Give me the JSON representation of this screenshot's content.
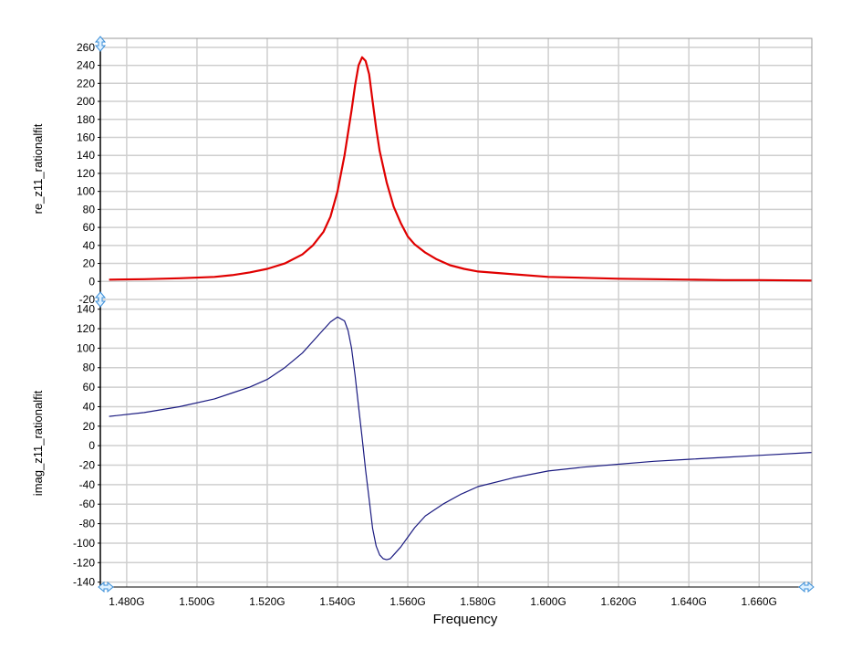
{
  "chart_data": {
    "type": "line",
    "shared_x": {
      "label": "Frequency",
      "unit_suffix": "G",
      "range": [
        1.4725,
        1.675
      ],
      "ticks": [
        1.48,
        1.5,
        1.52,
        1.54,
        1.56,
        1.58,
        1.6,
        1.62,
        1.64,
        1.66
      ],
      "tick_labels": [
        "1.480G",
        "1.500G",
        "1.520G",
        "1.540G",
        "1.560G",
        "1.580G",
        "1.600G",
        "1.620G",
        "1.640G",
        "1.660G"
      ]
    },
    "grid": true,
    "panels": [
      {
        "ylabel": "re_z11_rationalfit",
        "ylim": [
          -20,
          270
        ],
        "yticks": [
          -20,
          0,
          20,
          40,
          60,
          80,
          100,
          120,
          140,
          160,
          180,
          200,
          220,
          240,
          260
        ],
        "series": [
          {
            "color": "#e00000",
            "x": [
              1.475,
              1.485,
              1.495,
              1.505,
              1.51,
              1.515,
              1.52,
              1.525,
              1.53,
              1.533,
              1.536,
              1.538,
              1.54,
              1.542,
              1.544,
              1.545,
              1.546,
              1.547,
              1.548,
              1.549,
              1.55,
              1.551,
              1.552,
              1.554,
              1.556,
              1.558,
              1.56,
              1.562,
              1.565,
              1.568,
              1.572,
              1.576,
              1.58,
              1.59,
              1.6,
              1.61,
              1.62,
              1.63,
              1.64,
              1.65,
              1.66,
              1.675
            ],
            "y": [
              2,
              2.5,
              3.5,
              5,
              7,
              10,
              14,
              20,
              30,
              40,
              55,
              72,
              100,
              140,
              190,
              218,
              240,
              249,
              245,
              230,
              200,
              170,
              145,
              110,
              83,
              65,
              50,
              41,
              32,
              25,
              18,
              14,
              11,
              8,
              5,
              4,
              3,
              2.5,
              2,
              1.5,
              1.5,
              1
            ]
          }
        ]
      },
      {
        "ylabel": "imag_z11_rationalfit",
        "ylim": [
          -145,
          150
        ],
        "yticks": [
          -140,
          -120,
          -100,
          -80,
          -60,
          -40,
          -20,
          0,
          20,
          40,
          60,
          80,
          100,
          120,
          140
        ],
        "series": [
          {
            "color": "#1a1a80",
            "x": [
              1.475,
              1.485,
              1.495,
              1.505,
              1.51,
              1.515,
              1.52,
              1.525,
              1.53,
              1.535,
              1.538,
              1.54,
              1.542,
              1.543,
              1.544,
              1.545,
              1.546,
              1.547,
              1.548,
              1.549,
              1.55,
              1.551,
              1.552,
              1.553,
              1.554,
              1.555,
              1.556,
              1.558,
              1.56,
              1.562,
              1.565,
              1.57,
              1.575,
              1.58,
              1.59,
              1.6,
              1.61,
              1.62,
              1.63,
              1.64,
              1.65,
              1.66,
              1.675
            ],
            "y": [
              30,
              34,
              40,
              48,
              54,
              60,
              68,
              80,
              95,
              115,
              127,
              132,
              128,
              118,
              100,
              72,
              40,
              8,
              -25,
              -55,
              -85,
              -103,
              -112,
              -116,
              -117,
              -116,
              -112,
              -104,
              -94,
              -84,
              -72,
              -60,
              -50,
              -42,
              -33,
              -26,
              -22,
              -19,
              -16,
              -14,
              -12,
              -10,
              -7
            ]
          }
        ]
      }
    ]
  }
}
